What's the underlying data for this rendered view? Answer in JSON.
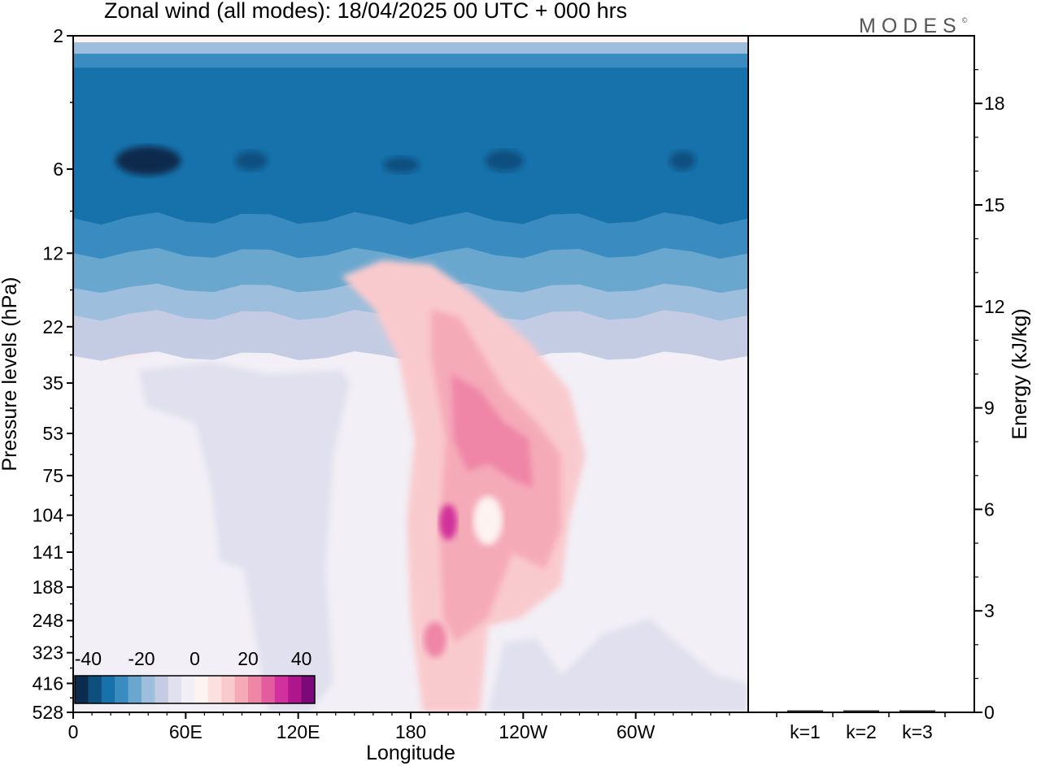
{
  "title": "Zonal wind (all modes):  18/04/2025  00 UTC  + 000 hrs",
  "brand": {
    "name": "MODES",
    "mark": "©"
  },
  "colors": {
    "negative_scale": [
      "#0c2c4d",
      "#0f4f80",
      "#1772ab",
      "#3a8cc0",
      "#6aa7cf",
      "#9dbedd",
      "#c4cce3",
      "#e0e0ee",
      "#f2eff6"
    ],
    "positive_scale": [
      "#fdf3f1",
      "#fbe0df",
      "#f9cacd",
      "#f5aab8",
      "#ef85a7",
      "#e35ca0",
      "#d1319a",
      "#b0168b",
      "#7b0a78",
      "#4a0a63"
    ]
  },
  "chart_data": [
    {
      "type": "heatmap",
      "title": "Zonal wind (all modes):  18/04/2025  00 UTC  + 000 hrs",
      "xlabel": "Longitude",
      "ylabel": "Pressure levels (hPa)",
      "x_ticks": [
        "0",
        "60E",
        "120E",
        "180",
        "120W",
        "60W"
      ],
      "x_tick_positions_deg": [
        0,
        60,
        120,
        180,
        240,
        300
      ],
      "xlim": [
        0,
        360
      ],
      "y_ticks": [
        "2",
        "6",
        "12",
        "22",
        "35",
        "53",
        "75",
        "104",
        "141",
        "188",
        "248",
        "323",
        "416",
        "528"
      ],
      "y_scale": "log",
      "y_inverted": true,
      "ylim": [
        2,
        528
      ],
      "colorbar": {
        "ticks": [
          "-40",
          "-20",
          "0",
          "20",
          "40"
        ],
        "range": [
          -45,
          45
        ],
        "levels": 18,
        "placement": "bottom-left"
      },
      "features": [
        {
          "description": "strong easterly band",
          "pressure_hPa": [
            2,
            30
          ],
          "value_range": [
            -45,
            -10
          ]
        },
        {
          "description": "westerly jet core",
          "longitude_deg": 200,
          "pressure_hPa": 110,
          "peak_value": 35
        },
        {
          "description": "westerly tongue",
          "longitude_deg": [
            185,
            230
          ],
          "pressure_hPa": [
            40,
            528
          ],
          "value_range": [
            5,
            25
          ]
        },
        {
          "description": "weak easterlies",
          "longitude_deg": [
            50,
            140
          ],
          "pressure_hPa": [
            80,
            400
          ],
          "value_range": [
            -5,
            -2
          ]
        }
      ]
    },
    {
      "type": "bar",
      "categories": [
        "k=1",
        "k=2",
        "k=3"
      ],
      "values": [
        0,
        0,
        0
      ],
      "ylabel": "Energy (kJ/kg)",
      "y_ticks": [
        "0",
        "3",
        "6",
        "9",
        "12",
        "15",
        "18"
      ],
      "ylim": [
        0,
        20
      ]
    }
  ]
}
